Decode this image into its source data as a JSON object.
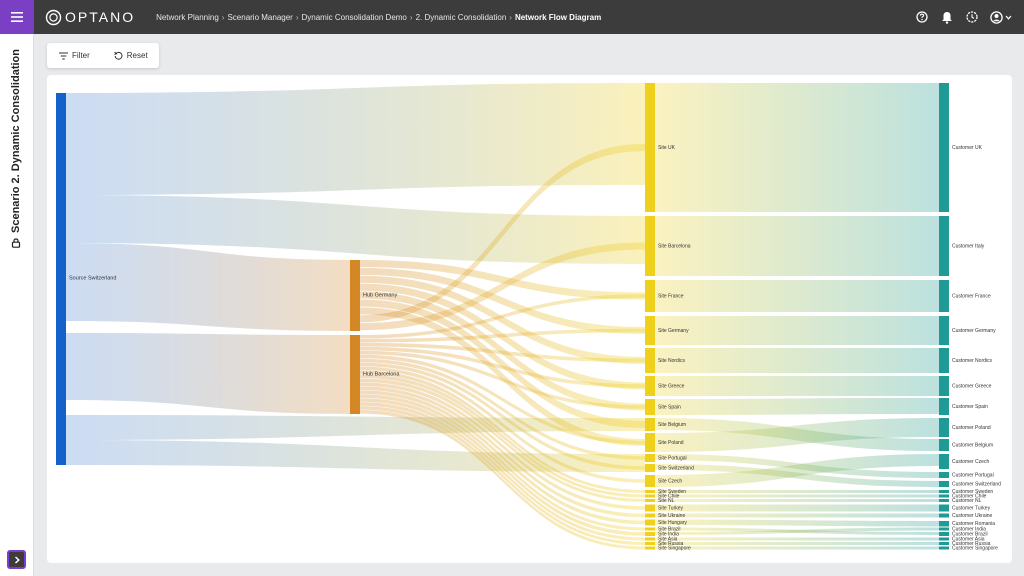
{
  "header": {
    "logo_text": "OPTANO",
    "breadcrumb": [
      "Network Planning",
      "Scenario Manager",
      "Dynamic Consolidation Demo",
      "2. Dynamic Consolidation"
    ],
    "current_page": "Network Flow Diagram"
  },
  "sidebar": {
    "scenario_title": "Scenario 2. Dynamic Consolidation"
  },
  "toolbar": {
    "filter_label": "Filter",
    "reset_label": "Reset"
  },
  "colors": {
    "source": "#1660c9",
    "hub": "#d48725",
    "site": "#efd01c",
    "customer": "#1f9a96",
    "menu": "#7b3fc4"
  },
  "sankey": {
    "source": {
      "name": "Source Switzerland"
    },
    "hubs": [
      {
        "name": "Hub Germany"
      },
      {
        "name": "Hub Barcelona"
      }
    ],
    "sites": [
      {
        "name": "Site UK"
      },
      {
        "name": "Site Barcelona"
      },
      {
        "name": "Site France"
      },
      {
        "name": "Site Germany"
      },
      {
        "name": "Site Nordics"
      },
      {
        "name": "Site Greece"
      },
      {
        "name": "Site Spain"
      },
      {
        "name": "Site Belgium"
      },
      {
        "name": "Site Poland"
      },
      {
        "name": "Site Portugal"
      },
      {
        "name": "Site Switzerland"
      },
      {
        "name": "Site Czech"
      },
      {
        "name": "Site Sweden"
      },
      {
        "name": "Site Chile"
      },
      {
        "name": "Site NL"
      },
      {
        "name": "Site Turkey"
      },
      {
        "name": "Site Ukraine"
      },
      {
        "name": "Site Hungary"
      },
      {
        "name": "Site Brazil"
      },
      {
        "name": "Site India"
      },
      {
        "name": "Site Asia"
      },
      {
        "name": "Site Russia"
      },
      {
        "name": "Site Singapore"
      }
    ],
    "customers": [
      {
        "name": "Customer UK"
      },
      {
        "name": "Customer Italy"
      },
      {
        "name": "Customer France"
      },
      {
        "name": "Customer Germany"
      },
      {
        "name": "Customer Nordics"
      },
      {
        "name": "Customer Greece"
      },
      {
        "name": "Customer Spain"
      },
      {
        "name": "Customer Poland"
      },
      {
        "name": "Customer Belgium"
      },
      {
        "name": "Customer Czech"
      },
      {
        "name": "Customer Portugal"
      },
      {
        "name": "Customer Switzerland"
      },
      {
        "name": "Customer Sweden"
      },
      {
        "name": "Customer Chile"
      },
      {
        "name": "Customer NL"
      },
      {
        "name": "Customer Turkey"
      },
      {
        "name": "Customer Ukraine"
      },
      {
        "name": "Customer Romania"
      },
      {
        "name": "Customer India"
      },
      {
        "name": "Customer Brazil"
      },
      {
        "name": "Customer Asia"
      },
      {
        "name": "Customer Russia"
      },
      {
        "name": "Customer Singapore"
      }
    ]
  }
}
